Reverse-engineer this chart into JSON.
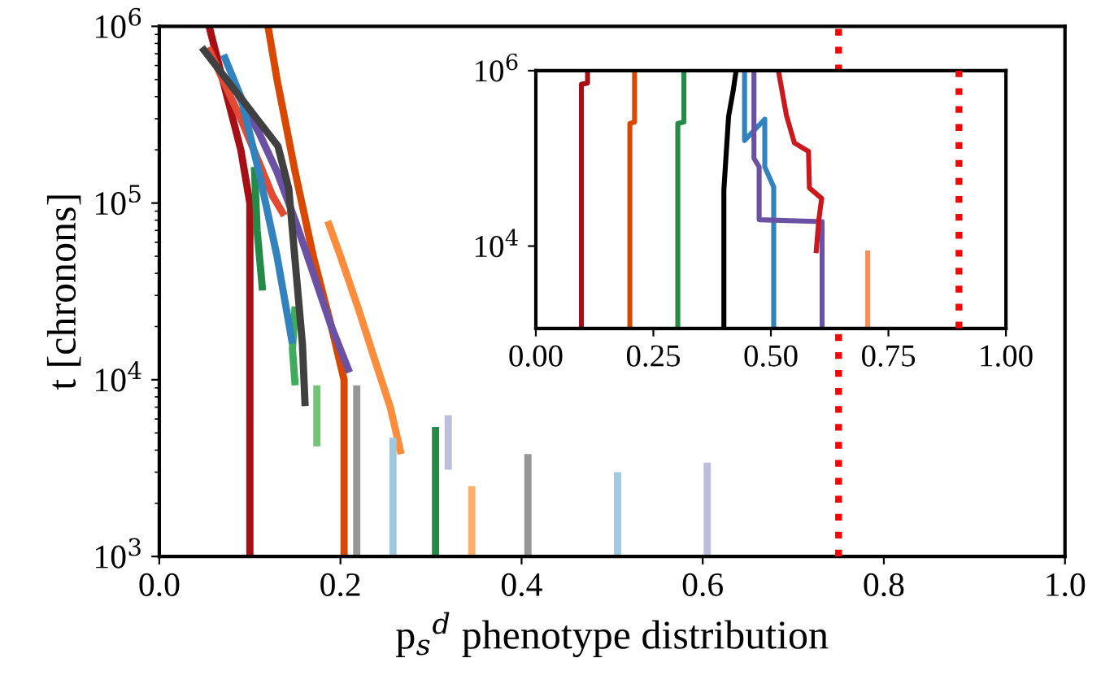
{
  "chart_data": [
    {
      "type": "line",
      "xlabel": "p$_{s}$$^{d}$ phenotype distribution",
      "ylabel": "t [chronons]",
      "log": "y",
      "xlim": [
        0,
        1
      ],
      "xticks": [
        {
          "value": 0,
          "label": "0.0"
        },
        0.2,
        0.4,
        0.6,
        0.8,
        {
          "value": 1,
          "label": "1.0"
        }
      ],
      "ylim": [
        1000,
        1000000
      ],
      "yticks": [
        {
          "value": 1000,
          "label": "10$^{3}$"
        },
        {
          "value": 10000,
          "label": "10$^{4}$"
        },
        {
          "value": 100000,
          "label": "10$^{5}$"
        },
        {
          "value": 1000000,
          "label": "10$^{6}$"
        }
      ],
      "grid": false,
      "legend": false,
      "marker": "none",
      "line_style": "solid",
      "series": [
        {
          "color": "#a50f15",
          "x": [
            0.1,
            0.1,
            0.09,
            0.07,
            0.055
          ],
          "values": [
            1000,
            100000,
            200000,
            500000,
            1000000
          ]
        },
        {
          "color": "#e34a33",
          "x": [
            0.054,
            0.07,
            0.09,
            0.11,
            0.125,
            0.138
          ],
          "values": [
            760000,
            500000,
            300000,
            170000,
            110000,
            85000
          ]
        },
        {
          "color": "#fd8d3c",
          "x": [
            0.186,
            0.2,
            0.22,
            0.24,
            0.255,
            0.267
          ],
          "values": [
            79000,
            50000,
            25000,
            12000,
            7000,
            3800
          ]
        },
        {
          "color": "#fdae6b",
          "x": [
            0.345,
            0.345
          ],
          "values": [
            1000,
            2500
          ]
        },
        {
          "color": "#d94801",
          "x": [
            0.204,
            0.204,
            0.19,
            0.17,
            0.15,
            0.13,
            0.12
          ],
          "values": [
            1000,
            10000,
            20000,
            50000,
            150000,
            500000,
            1000000
          ]
        },
        {
          "color": "#238b45",
          "x": [
            0.105,
            0.108,
            0.114
          ],
          "values": [
            160000,
            70000,
            32000
          ]
        },
        {
          "color": "#41ab5d",
          "x": [
            0.15,
            0.147,
            0.15
          ],
          "values": [
            26000,
            15000,
            9300
          ]
        },
        {
          "color": "#74c476",
          "x": [
            0.174,
            0.174
          ],
          "values": [
            9300,
            4200
          ]
        },
        {
          "color": "#238b45",
          "x": [
            0.305,
            0.305
          ],
          "values": [
            1000,
            5400
          ]
        },
        {
          "color": "#6a51a3",
          "x": [
            0.087,
            0.11,
            0.13,
            0.15,
            0.17,
            0.19,
            0.21
          ],
          "values": [
            410000,
            250000,
            150000,
            80000,
            40000,
            20000,
            11000
          ]
        },
        {
          "color": "#bcbddc",
          "x": [
            0.319,
            0.319
          ],
          "values": [
            3100,
            6300
          ]
        },
        {
          "color": "#bcbddc",
          "x": [
            0.605,
            0.605
          ],
          "values": [
            1000,
            3400
          ]
        },
        {
          "color": "#3182bd",
          "x": [
            0.071,
            0.09,
            0.11,
            0.13,
            0.147
          ],
          "values": [
            690000,
            400000,
            150000,
            50000,
            16000
          ]
        },
        {
          "color": "#9ecae1",
          "x": [
            0.258,
            0.258
          ],
          "values": [
            1000,
            4700
          ]
        },
        {
          "color": "#9ecae1",
          "x": [
            0.506,
            0.506
          ],
          "values": [
            1000,
            3000
          ]
        },
        {
          "color": "#404040",
          "x": [
            0.047,
            0.131,
            0.143,
            0.158,
            0.161
          ],
          "values": [
            760000,
            210000,
            120000,
            16000,
            7100
          ]
        },
        {
          "color": "#969696",
          "x": [
            0.218,
            0.218
          ],
          "values": [
            1000,
            9300
          ]
        },
        {
          "color": "#969696",
          "x": [
            0.407,
            0.407
          ],
          "values": [
            1000,
            3800
          ]
        }
      ],
      "ref_lines": [
        {
          "axis": "x",
          "value": 0.75,
          "color": "#ff0000",
          "line_style": "dotted"
        }
      ]
    },
    {
      "type": "line",
      "log": "y",
      "xlim": [
        0,
        1
      ],
      "xticks": [
        {
          "value": 0,
          "label": "0.00"
        },
        0.25,
        {
          "value": 0.5,
          "label": "0.50"
        },
        0.75,
        {
          "value": 1,
          "label": "1.00"
        }
      ],
      "ylim": [
        1150,
        1000000
      ],
      "yticks": [
        {
          "value": 10000,
          "label": "10$^{4}$"
        },
        {
          "value": 1000000,
          "label": "10$^{6}$"
        }
      ],
      "grid": false,
      "legend": false,
      "marker": "none",
      "line_style": "solid",
      "series": [
        {
          "color": "#a50f15",
          "x": [
            0.097,
            0.097,
            0.11,
            0.11
          ],
          "values": [
            1150,
            700000,
            720000,
            1000000
          ]
        },
        {
          "color": "#d94801",
          "x": [
            0.2,
            0.2,
            0.21,
            0.21
          ],
          "values": [
            1150,
            250000,
            260000,
            1000000
          ]
        },
        {
          "color": "#238b45",
          "x": [
            0.302,
            0.302,
            0.315,
            0.315
          ],
          "values": [
            1150,
            250000,
            260000,
            1000000
          ]
        },
        {
          "color": "#000000",
          "x": [
            0.4,
            0.4,
            0.41,
            0.42,
            0.426
          ],
          "values": [
            1150,
            44000,
            300000,
            600000,
            1000000
          ]
        },
        {
          "color": "#3182bd",
          "x": [
            0.506,
            0.506,
            0.487,
            0.487,
            0.444,
            0.444
          ],
          "values": [
            1150,
            47000,
            80000,
            280000,
            160000,
            1000000
          ]
        },
        {
          "color": "#6a51a3",
          "x": [
            0.609,
            0.609,
            0.475,
            0.475,
            0.464,
            0.464
          ],
          "values": [
            1150,
            19000,
            20000,
            80000,
            100000,
            1000000
          ]
        },
        {
          "color": "#cb181d",
          "x": [
            0.516,
            0.522,
            0.533,
            0.55,
            0.58,
            0.582,
            0.608,
            0.602,
            0.596
          ],
          "values": [
            1000000,
            660000,
            310000,
            150000,
            120000,
            46000,
            35000,
            20000,
            8300
          ]
        },
        {
          "color": "#fc8d59",
          "x": [
            0.706,
            0.706
          ],
          "values": [
            1150,
            8900
          ]
        }
      ],
      "ref_lines": [
        {
          "axis": "x",
          "value": 0.9,
          "color": "#ff0000",
          "line_style": "dotted"
        }
      ]
    }
  ]
}
